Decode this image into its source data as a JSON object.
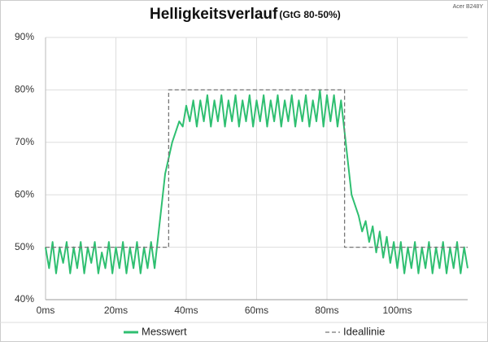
{
  "chart_data": {
    "type": "line",
    "title": "Helligkeitsverlauf",
    "subtitle": "(GtG 80-50%)",
    "corner_label": "Acer B248Y",
    "xlim": [
      0,
      120
    ],
    "ylim": [
      40,
      90
    ],
    "grid": true,
    "xticks": [
      {
        "value": 0,
        "label": "0ms"
      },
      {
        "value": 20,
        "label": "20ms"
      },
      {
        "value": 40,
        "label": "40ms"
      },
      {
        "value": 60,
        "label": "60ms"
      },
      {
        "value": 80,
        "label": "80ms"
      },
      {
        "value": 100,
        "label": "100ms"
      }
    ],
    "yticks": [
      {
        "value": 40,
        "label": "40%"
      },
      {
        "value": 50,
        "label": "50%"
      },
      {
        "value": 60,
        "label": "60%"
      },
      {
        "value": 70,
        "label": "70%"
      },
      {
        "value": 80,
        "label": "80%"
      },
      {
        "value": 90,
        "label": "90%"
      }
    ],
    "series": [
      {
        "name": "Messwert",
        "color": "#2fbf71",
        "dashed": false,
        "x": [
          0,
          1,
          2,
          3,
          4,
          5,
          6,
          7,
          8,
          9,
          10,
          11,
          12,
          13,
          14,
          15,
          16,
          17,
          18,
          19,
          20,
          21,
          22,
          23,
          24,
          25,
          26,
          27,
          28,
          29,
          30,
          31,
          32,
          33,
          34,
          35,
          36,
          37,
          38,
          39,
          40,
          41,
          42,
          43,
          44,
          45,
          46,
          47,
          48,
          49,
          50,
          51,
          52,
          53,
          54,
          55,
          56,
          57,
          58,
          59,
          60,
          61,
          62,
          63,
          64,
          65,
          66,
          67,
          68,
          69,
          70,
          71,
          72,
          73,
          74,
          75,
          76,
          77,
          78,
          79,
          80,
          81,
          82,
          83,
          84,
          85,
          86,
          87,
          88,
          89,
          90,
          91,
          92,
          93,
          94,
          95,
          96,
          97,
          98,
          99,
          100,
          101,
          102,
          103,
          104,
          105,
          106,
          107,
          108,
          109,
          110,
          111,
          112,
          113,
          114,
          115,
          116,
          117,
          118,
          119,
          120
        ],
        "values": [
          50,
          46,
          51,
          45,
          50,
          47,
          51,
          45,
          50,
          46,
          51,
          45,
          50,
          47,
          51,
          45,
          49,
          46,
          51,
          45,
          50,
          46,
          51,
          45,
          50,
          46,
          51,
          45,
          50,
          46,
          51,
          46,
          52,
          58,
          64,
          67,
          70,
          72,
          74,
          73,
          77,
          74,
          78,
          73,
          78,
          74,
          79,
          73,
          78,
          74,
          79,
          73,
          78,
          74,
          79,
          73,
          78,
          74,
          79,
          73,
          78,
          74,
          79,
          73,
          78,
          74,
          79,
          73,
          78,
          74,
          79,
          73,
          78,
          74,
          79,
          73,
          78,
          74,
          80,
          73,
          79,
          74,
          79,
          73,
          78,
          72,
          66,
          60,
          58,
          56,
          53,
          55,
          51,
          54,
          49,
          53,
          48,
          52,
          47,
          51,
          46,
          51,
          45,
          50,
          46,
          51,
          45,
          50,
          46,
          51,
          45,
          50,
          46,
          51,
          45,
          50,
          46,
          51,
          45,
          50,
          46
        ]
      },
      {
        "name": "Ideallinie",
        "color": "#777777",
        "dashed": true,
        "x": [
          0,
          35,
          35,
          85,
          85,
          120
        ],
        "values": [
          50,
          50,
          80,
          80,
          50,
          50
        ]
      }
    ]
  }
}
